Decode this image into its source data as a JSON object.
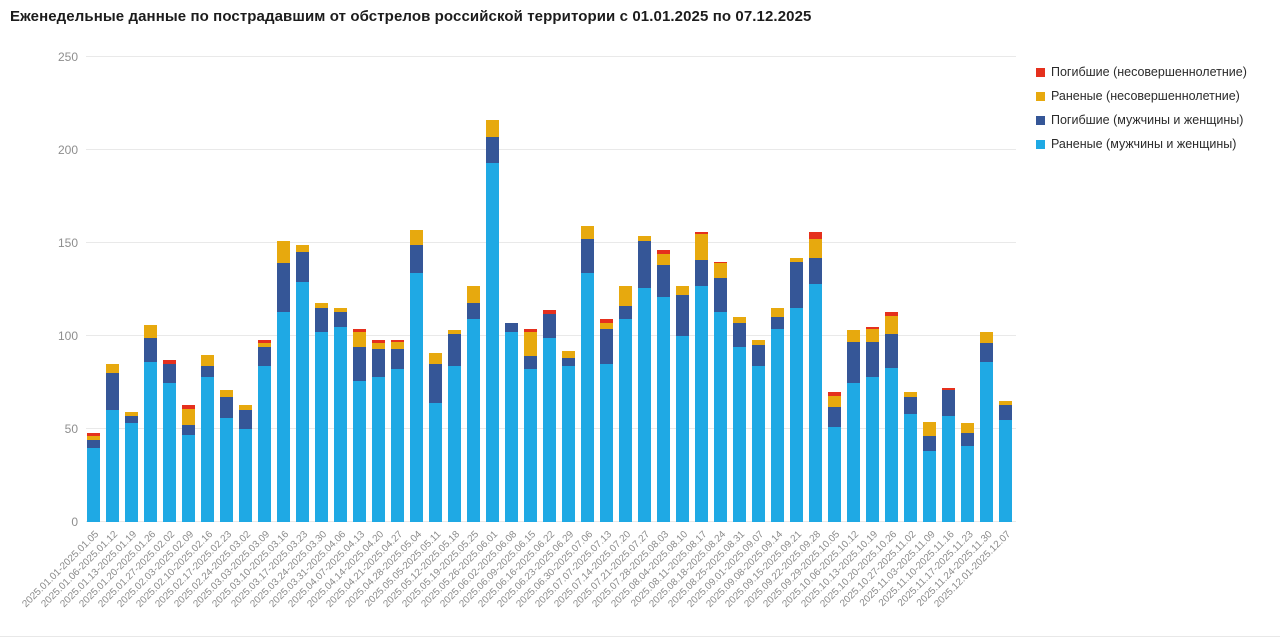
{
  "title": "Еженедельные данные по пострадавшим от обстрелов российской территории с 01.01.2025 по 07.12.2025",
  "chart_data": {
    "type": "bar",
    "stacked": true,
    "title": "Еженедельные данные по пострадавшим от обстрелов российской территории с 01.01.2025 по 07.12.2025",
    "xlabel": "",
    "ylabel": "",
    "ylim": [
      0,
      250
    ],
    "yticks": [
      0,
      50,
      100,
      150,
      200,
      250
    ],
    "grid": "horizontal",
    "legend_position": "top-right",
    "categories": [
      "2025.01.01-2025.01.05",
      "2025.01.06-2025.01.12",
      "2025.01.13-2025.01.19",
      "2025.01.20-2025.01.26",
      "2025.01.27-2025.02.02",
      "2025.02.03-2025.02.09",
      "2025.02.10-2025.02.16",
      "2025.02.17-2025.02.23",
      "2025.02.24-2025.03.02",
      "2025.03.03-2025.03.09",
      "2025.03.10-2025.03.16",
      "2025.03.17-2025.03.23",
      "2025.03.24-2025.03.30",
      "2025.03.31-2025.04.06",
      "2025.04.07-2025.04.13",
      "2025.04.14-2025.04.20",
      "2025.04.21-2025.04.27",
      "2025.04.28-2025.05.04",
      "2025.05.05-2025.05.11",
      "2025.05.12-2025.05.18",
      "2025.05.19-2025.05.25",
      "2025.05.26-2025.06.01",
      "2025.06.02-2025.06.08",
      "2025.06.09-2025.06.15",
      "2025.06.16-2025.06.22",
      "2025.06.23-2025.06.29",
      "2025.06.30-2025.07.06",
      "2025.07.07-2025.07.13",
      "2025.07.14-2025.07.20",
      "2025.07.21-2025.07.27",
      "2025.07.28-2025.08.03",
      "2025.08.04-2025.08.10",
      "2025.08.11-2025.08.17",
      "2025.08.18-2025.08.24",
      "2025.08.25-2025.08.31",
      "2025.09.01-2025.09.07",
      "2025.09.08-2025.09.14",
      "2025.09.15-2025.09.21",
      "2025.09.22-2025.09.28",
      "2025.09.29-2025.10.05",
      "2025.10.06-2025.10.12",
      "2025.10.13-2025.10.19",
      "2025.10.20-2025.10.26",
      "2025.10.27-2025.11.02",
      "2025.11.03-2025.11.09",
      "2025.11.10-2025.11.16",
      "2025.11.17-2025.11.23",
      "2025.11.24-2025.11.30",
      "2025.12.01-2025.12.07"
    ],
    "series": [
      {
        "name": "Погибшие (несовершеннолетние)",
        "color": "#e5301d",
        "values": [
          2,
          0,
          0,
          0,
          2,
          2,
          0,
          0,
          0,
          2,
          0,
          0,
          0,
          0,
          2,
          2,
          1,
          0,
          0,
          0,
          0,
          0,
          0,
          2,
          2,
          0,
          0,
          2,
          0,
          0,
          2,
          0,
          1,
          1,
          0,
          0,
          0,
          0,
          4,
          2,
          0,
          1,
          2,
          0,
          0,
          1,
          0,
          0,
          0
        ]
      },
      {
        "name": "Раненые (несовершеннолетние)",
        "color": "#e7a90e",
        "values": [
          2,
          5,
          2,
          7,
          0,
          9,
          6,
          4,
          3,
          2,
          12,
          4,
          3,
          2,
          8,
          3,
          4,
          8,
          6,
          2,
          9,
          9,
          0,
          13,
          0,
          4,
          7,
          3,
          11,
          3,
          6,
          5,
          14,
          8,
          3,
          3,
          5,
          2,
          10,
          6,
          6,
          7,
          10,
          3,
          8,
          0,
          5,
          6,
          2
        ]
      },
      {
        "name": "Погибшие (мужчины и женщины)",
        "color": "#355697",
        "values": [
          4,
          20,
          4,
          13,
          10,
          5,
          6,
          11,
          10,
          10,
          26,
          16,
          13,
          8,
          18,
          15,
          11,
          15,
          21,
          17,
          9,
          14,
          5,
          7,
          13,
          4,
          18,
          19,
          7,
          25,
          17,
          22,
          14,
          18,
          13,
          11,
          6,
          25,
          14,
          11,
          22,
          19,
          18,
          9,
          8,
          14,
          7,
          10,
          8
        ]
      },
      {
        "name": "Раненые (мужчины и женщины)",
        "color": "#1fa9e4",
        "values": [
          40,
          60,
          53,
          86,
          75,
          47,
          78,
          56,
          50,
          84,
          113,
          129,
          102,
          105,
          76,
          78,
          82,
          134,
          64,
          84,
          109,
          193,
          102,
          82,
          99,
          84,
          134,
          85,
          109,
          126,
          121,
          100,
          127,
          113,
          94,
          84,
          104,
          115,
          128,
          51,
          75,
          78,
          83,
          58,
          38,
          57,
          41,
          86,
          55
        ]
      }
    ]
  }
}
